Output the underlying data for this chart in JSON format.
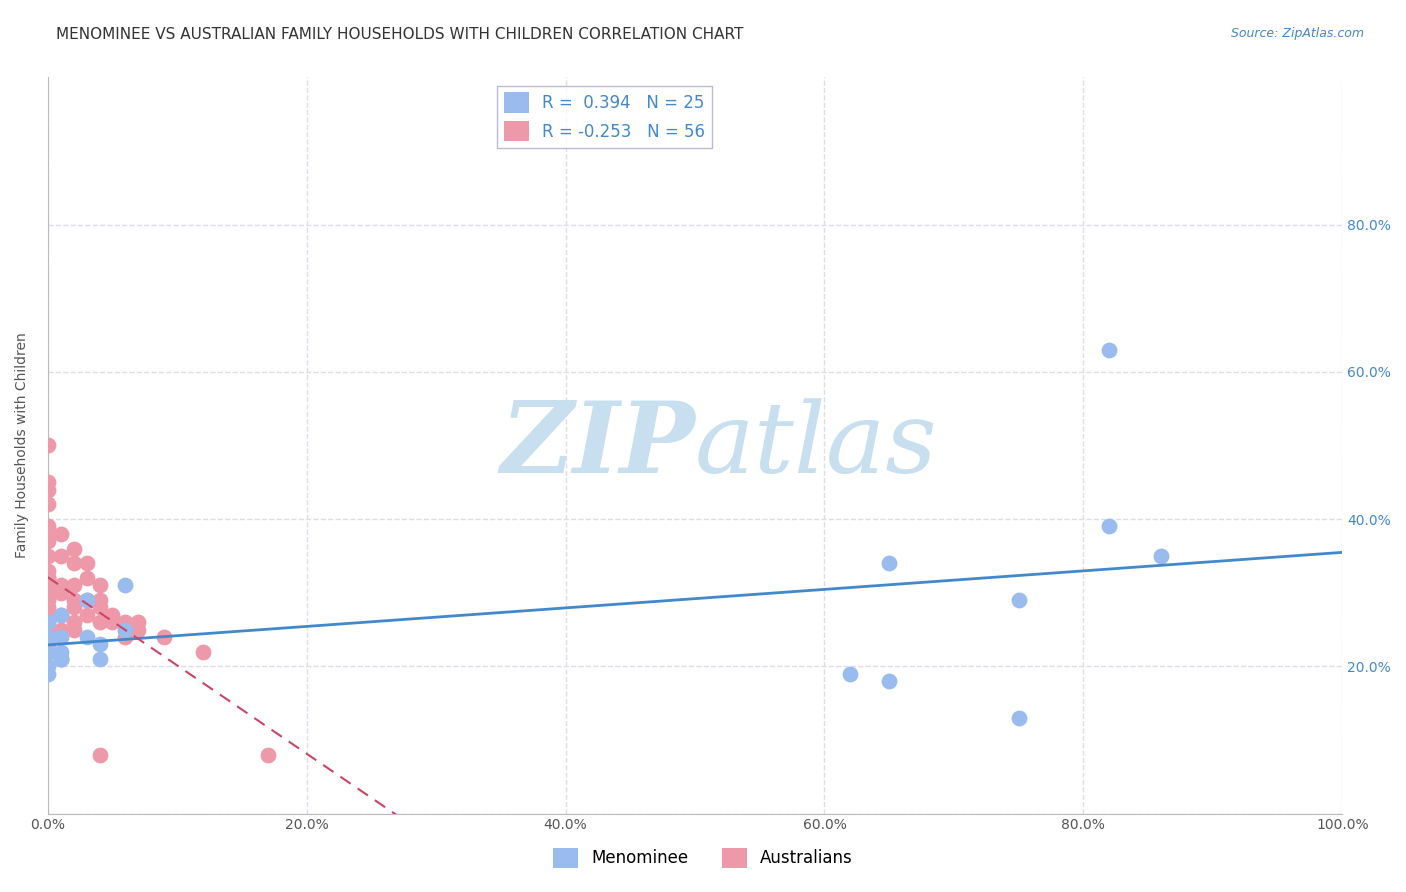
{
  "title": "MENOMINEE VS AUSTRALIAN FAMILY HOUSEHOLDS WITH CHILDREN CORRELATION CHART",
  "source": "Source: ZipAtlas.com",
  "ylabel": "Family Households with Children",
  "xlim": [
    0.0,
    1.0
  ],
  "ylim": [
    0.0,
    1.0
  ],
  "xticks": [
    0.0,
    0.2,
    0.4,
    0.6,
    0.8,
    1.0
  ],
  "yticks": [
    0.0,
    0.2,
    0.4,
    0.6,
    0.8
  ],
  "xtick_labels": [
    "0.0%",
    "20.0%",
    "40.0%",
    "60.0%",
    "80.0%",
    "100.0%"
  ],
  "right_ytick_labels": [
    "20.0%",
    "40.0%",
    "60.0%",
    "80.0%"
  ],
  "right_yticks": [
    0.2,
    0.4,
    0.6,
    0.8
  ],
  "menominee_color": "#99bbee",
  "australians_color": "#ee99aa",
  "menominee_line_color": "#4488cc",
  "australians_line_color": "#cc4466",
  "R_menominee": 0.394,
  "N_menominee": 25,
  "R_australians": -0.253,
  "N_australians": 56,
  "watermark_zip": "ZIP",
  "watermark_atlas": "atlas",
  "watermark_color": "#c8dff0",
  "menominee_x": [
    0.0,
    0.0,
    0.01,
    0.0,
    0.0,
    0.01,
    0.01,
    0.0,
    0.0,
    0.01,
    0.01,
    0.03,
    0.03,
    0.04,
    0.04,
    0.06,
    0.06,
    0.62,
    0.65,
    0.65,
    0.75,
    0.75,
    0.82,
    0.82,
    0.86
  ],
  "menominee_y": [
    0.26,
    0.22,
    0.24,
    0.2,
    0.19,
    0.27,
    0.21,
    0.22,
    0.24,
    0.22,
    0.21,
    0.29,
    0.24,
    0.23,
    0.21,
    0.31,
    0.25,
    0.19,
    0.18,
    0.34,
    0.29,
    0.13,
    0.39,
    0.63,
    0.35
  ],
  "australians_x": [
    0.0,
    0.0,
    0.0,
    0.0,
    0.0,
    0.0,
    0.0,
    0.0,
    0.0,
    0.0,
    0.0,
    0.0,
    0.0,
    0.0,
    0.0,
    0.0,
    0.0,
    0.0,
    0.0,
    0.0,
    0.0,
    0.0,
    0.0,
    0.0,
    0.01,
    0.01,
    0.01,
    0.01,
    0.01,
    0.01,
    0.01,
    0.02,
    0.02,
    0.02,
    0.02,
    0.02,
    0.02,
    0.02,
    0.03,
    0.03,
    0.03,
    0.03,
    0.04,
    0.04,
    0.04,
    0.04,
    0.04,
    0.05,
    0.05,
    0.06,
    0.06,
    0.07,
    0.07,
    0.09,
    0.12,
    0.17
  ],
  "australians_y": [
    0.5,
    0.45,
    0.44,
    0.42,
    0.39,
    0.38,
    0.37,
    0.35,
    0.33,
    0.32,
    0.32,
    0.31,
    0.31,
    0.3,
    0.3,
    0.29,
    0.28,
    0.27,
    0.26,
    0.25,
    0.25,
    0.24,
    0.23,
    0.22,
    0.38,
    0.35,
    0.31,
    0.3,
    0.27,
    0.25,
    0.21,
    0.36,
    0.34,
    0.31,
    0.29,
    0.28,
    0.26,
    0.25,
    0.34,
    0.32,
    0.29,
    0.27,
    0.31,
    0.29,
    0.28,
    0.26,
    0.08,
    0.27,
    0.26,
    0.26,
    0.24,
    0.25,
    0.26,
    0.24,
    0.22,
    0.08
  ],
  "background_color": "#ffffff",
  "grid_color": "#ddddee",
  "title_fontsize": 11,
  "axis_fontsize": 10,
  "tick_fontsize": 10,
  "legend_fontsize": 12
}
